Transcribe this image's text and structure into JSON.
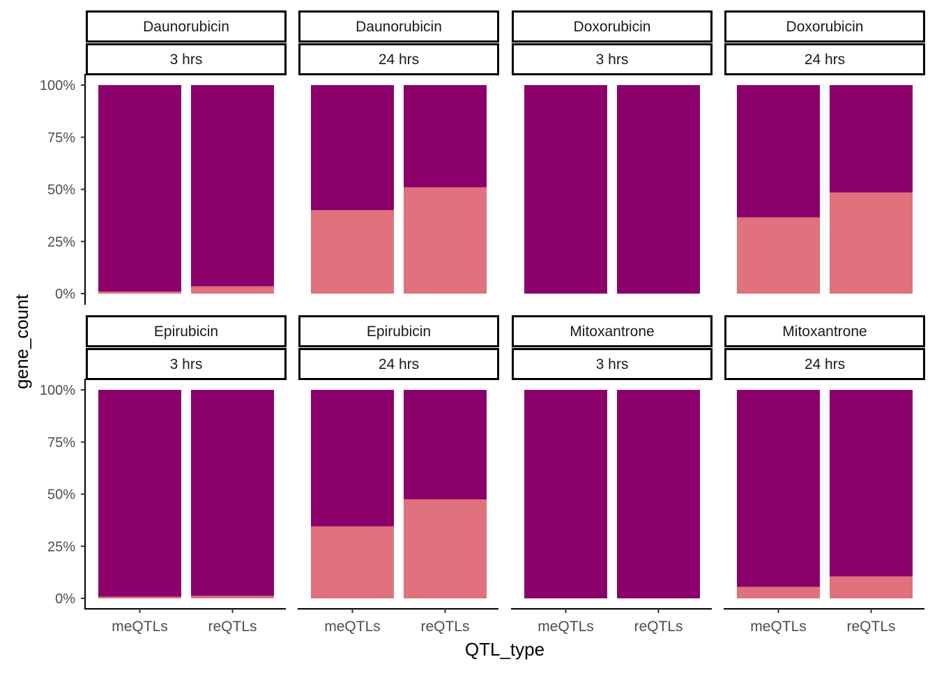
{
  "chart_data": {
    "type": "bar",
    "stacked": true,
    "percent_scale": true,
    "xlabel": "QTL_type",
    "ylabel": "gene_count",
    "categories": [
      "meQTLs",
      "reQTLs"
    ],
    "y_ticks": [
      "0%",
      "25%",
      "50%",
      "75%",
      "100%"
    ],
    "ylim": [
      0,
      100
    ],
    "colors": {
      "upper": "#8B006B",
      "lower": "#DF727C"
    },
    "panels": [
      {
        "drug": "Daunorubicin",
        "time": "3 hrs",
        "lower_pct": [
          1,
          3.5
        ]
      },
      {
        "drug": "Daunorubicin",
        "time": "24 hrs",
        "lower_pct": [
          40,
          51
        ]
      },
      {
        "drug": "Doxorubicin",
        "time": "3 hrs",
        "lower_pct": [
          0,
          0
        ]
      },
      {
        "drug": "Doxorubicin",
        "time": "24 hrs",
        "lower_pct": [
          36.5,
          48.5
        ]
      },
      {
        "drug": "Epirubicin",
        "time": "3 hrs",
        "lower_pct": [
          0.8,
          1.2
        ]
      },
      {
        "drug": "Epirubicin",
        "time": "24 hrs",
        "lower_pct": [
          34.5,
          47.5
        ]
      },
      {
        "drug": "Mitoxantrone",
        "time": "3 hrs",
        "lower_pct": [
          0,
          0
        ]
      },
      {
        "drug": "Mitoxantrone",
        "time": "24 hrs",
        "lower_pct": [
          5.5,
          10.5
        ]
      }
    ]
  }
}
